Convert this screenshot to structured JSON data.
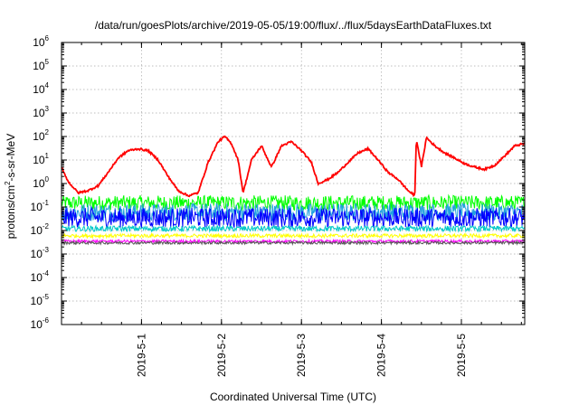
{
  "chart_data": {
    "type": "line",
    "title": "/data/run/goesPlots/archive/2019-05-05/19:00/flux/../flux/5daysEarthDataFluxes.txt",
    "xlabel": "Coordinated Universal Time (UTC)",
    "ylabel": {
      "prefix": "protons/cm",
      "sup": "2",
      "suffix": "-s-sr-MeV"
    },
    "x_range": [
      "2019-04-30 00:00",
      "2019-05-05 19:00"
    ],
    "x_ticks": [
      "2019-5-1",
      "2019-5-2",
      "2019-5-3",
      "2019-5-4",
      "2019-5-5"
    ],
    "y_scale": "log",
    "ylim": [
      1e-06,
      1000000.0
    ],
    "y_ticks": [
      {
        "base": "10",
        "exp": "-6"
      },
      {
        "base": "10",
        "exp": "-5"
      },
      {
        "base": "10",
        "exp": "-4"
      },
      {
        "base": "10",
        "exp": "-3"
      },
      {
        "base": "10",
        "exp": "-2"
      },
      {
        "base": "10",
        "exp": "-1"
      },
      {
        "base": "10",
        "exp": "0"
      },
      {
        "base": "10",
        "exp": "1"
      },
      {
        "base": "10",
        "exp": "2"
      },
      {
        "base": "10",
        "exp": "3"
      },
      {
        "base": "10",
        "exp": "4"
      },
      {
        "base": "10",
        "exp": "5"
      },
      {
        "base": "10",
        "exp": "6"
      }
    ],
    "grid": true,
    "series": [
      {
        "color": "#ff0000",
        "points": [
          [
            "2019-04-30 00:00",
            5
          ],
          [
            "2019-04-30 02:00",
            1.2
          ],
          [
            "2019-04-30 05:00",
            0.4
          ],
          [
            "2019-04-30 08:00",
            0.5
          ],
          [
            "2019-04-30 11:00",
            0.8
          ],
          [
            "2019-04-30 14:00",
            3
          ],
          [
            "2019-04-30 17:00",
            12
          ],
          [
            "2019-04-30 20:00",
            25
          ],
          [
            "2019-04-30 23:00",
            30
          ],
          [
            "2019-05-01 02:00",
            25
          ],
          [
            "2019-05-01 05:00",
            10
          ],
          [
            "2019-05-01 08:00",
            2
          ],
          [
            "2019-05-01 11:00",
            0.5
          ],
          [
            "2019-05-01 14:00",
            0.3
          ],
          [
            "2019-05-01 17:00",
            0.4
          ],
          [
            "2019-05-01 20:00",
            8
          ],
          [
            "2019-05-01 23:00",
            60
          ],
          [
            "2019-05-02 01:00",
            100
          ],
          [
            "2019-05-02 03:00",
            50
          ],
          [
            "2019-05-02 05:00",
            10
          ],
          [
            "2019-05-02 06:30",
            0.4
          ],
          [
            "2019-05-02 09:00",
            10
          ],
          [
            "2019-05-02 12:00",
            40
          ],
          [
            "2019-05-02 15:00",
            5
          ],
          [
            "2019-05-02 18:00",
            40
          ],
          [
            "2019-05-02 21:00",
            60
          ],
          [
            "2019-05-03 00:00",
            25
          ],
          [
            "2019-05-03 03:00",
            8
          ],
          [
            "2019-05-03 05:00",
            1
          ],
          [
            "2019-05-03 08:00",
            1.5
          ],
          [
            "2019-05-03 11:00",
            3
          ],
          [
            "2019-05-03 14:00",
            8
          ],
          [
            "2019-05-03 17:00",
            20
          ],
          [
            "2019-05-03 20:00",
            30
          ],
          [
            "2019-05-03 23:00",
            10
          ],
          [
            "2019-05-04 02:00",
            3
          ],
          [
            "2019-05-04 05:00",
            1.5
          ],
          [
            "2019-05-04 08:00",
            0.5
          ],
          [
            "2019-05-04 10:00",
            0.3
          ],
          [
            "2019-05-04 10:30",
            80
          ],
          [
            "2019-05-04 12:00",
            5
          ],
          [
            "2019-05-04 13:30",
            90
          ],
          [
            "2019-05-04 16:00",
            40
          ],
          [
            "2019-05-04 19:00",
            20
          ],
          [
            "2019-05-04 22:00",
            12
          ],
          [
            "2019-05-05 01:00",
            7
          ],
          [
            "2019-05-05 04:00",
            5
          ],
          [
            "2019-05-05 07:00",
            4
          ],
          [
            "2019-05-05 10:00",
            6
          ],
          [
            "2019-05-05 13:00",
            15
          ],
          [
            "2019-05-05 16:00",
            40
          ],
          [
            "2019-05-05 19:00",
            50
          ]
        ]
      },
      {
        "color": "#00ff00",
        "points": [
          [
            "2019-04-30 00:00",
            0.15
          ],
          [
            "2019-05-05 19:00",
            0.15
          ]
        ]
      },
      {
        "color": "#1fa0e0",
        "points": [
          [
            "2019-04-30 00:00",
            0.06
          ],
          [
            "2019-05-05 19:00",
            0.06
          ]
        ]
      },
      {
        "color": "#0000ff",
        "points": [
          [
            "2019-04-30 00:00",
            0.035
          ],
          [
            "2019-05-05 19:00",
            0.035
          ]
        ]
      },
      {
        "color": "#00c8c8",
        "points": [
          [
            "2019-04-30 00:00",
            0.012
          ],
          [
            "2019-05-05 19:00",
            0.012
          ]
        ]
      },
      {
        "color": "#ffff00",
        "points": [
          [
            "2019-04-30 00:00",
            0.006
          ],
          [
            "2019-05-05 19:00",
            0.006
          ]
        ]
      },
      {
        "color": "#ff00ff",
        "points": [
          [
            "2019-04-30 00:00",
            0.0035
          ],
          [
            "2019-05-05 19:00",
            0.0035
          ]
        ]
      },
      {
        "color": "#555555",
        "points": [
          [
            "2019-04-30 00:00",
            0.003
          ],
          [
            "2019-05-05 19:00",
            0.003
          ]
        ]
      }
    ]
  }
}
